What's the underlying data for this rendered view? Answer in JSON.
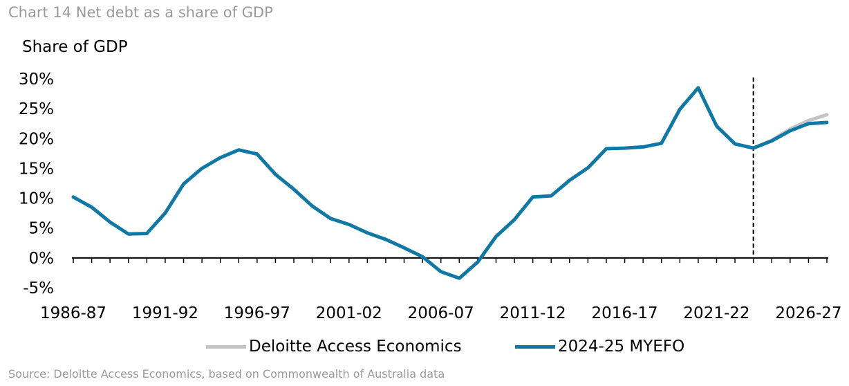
{
  "title": "Chart 14 Net debt as a share of GDP",
  "y_unit_label": "Share of GDP",
  "source": "Source: Deloitte Access Economics, based on Commonwealth of Australia data",
  "colors": {
    "dae": "#c4c4c4",
    "myefo": "#0f79a6",
    "axis": "#000000",
    "divider": "#000000"
  },
  "legend": [
    {
      "key": "dae",
      "label": "Deloitte Access Economics"
    },
    {
      "key": "myefo",
      "label": "2024-25 MYEFO"
    }
  ],
  "chart_data": {
    "type": "line",
    "title": "Chart 14 Net debt as a share of GDP",
    "ylabel": "Share of GDP",
    "xlabel": "",
    "ylim": [
      -5,
      30
    ],
    "yticks": [
      -5,
      0,
      5,
      10,
      15,
      20,
      25,
      30
    ],
    "ytick_labels": [
      "-5%",
      "0%",
      "5%",
      "10%",
      "15%",
      "20%",
      "25%",
      "30%"
    ],
    "xtick_labels": [
      "1986-87",
      "1991-92",
      "1996-97",
      "2001-02",
      "2006-07",
      "2011-12",
      "2016-17",
      "2021-22",
      "2026-27"
    ],
    "xtick_label_every": 5,
    "forecast_divider_after": "2023-24",
    "grid": false,
    "legend_position": "bottom",
    "x": [
      "1986-87",
      "1987-88",
      "1988-89",
      "1989-90",
      "1990-91",
      "1991-92",
      "1992-93",
      "1993-94",
      "1994-95",
      "1995-96",
      "1996-97",
      "1997-98",
      "1998-99",
      "1999-00",
      "2000-01",
      "2001-02",
      "2002-03",
      "2003-04",
      "2004-05",
      "2005-06",
      "2006-07",
      "2007-08",
      "2008-09",
      "2009-10",
      "2010-11",
      "2011-12",
      "2012-13",
      "2013-14",
      "2014-15",
      "2015-16",
      "2016-17",
      "2017-18",
      "2018-19",
      "2019-20",
      "2020-21",
      "2021-22",
      "2022-23",
      "2023-24",
      "2024-25",
      "2025-26",
      "2026-27",
      "2027-28"
    ],
    "series": [
      {
        "name": "Deloitte Access Economics",
        "key": "dae",
        "values": [
          null,
          null,
          null,
          null,
          null,
          null,
          null,
          null,
          null,
          null,
          null,
          null,
          null,
          null,
          null,
          null,
          null,
          null,
          null,
          null,
          null,
          null,
          null,
          null,
          null,
          null,
          null,
          null,
          null,
          null,
          null,
          null,
          null,
          null,
          null,
          null,
          null,
          18.4,
          19.7,
          21.6,
          23.0,
          24.0
        ]
      },
      {
        "name": "2024-25 MYEFO",
        "key": "myefo",
        "values": [
          10.2,
          8.5,
          6.0,
          4.0,
          4.1,
          7.5,
          12.4,
          15.0,
          16.8,
          18.1,
          17.4,
          14.0,
          11.5,
          8.7,
          6.6,
          5.6,
          4.2,
          3.1,
          1.7,
          0.2,
          -2.3,
          -3.4,
          -0.7,
          3.6,
          6.4,
          10.2,
          10.4,
          13.0,
          15.1,
          18.3,
          18.4,
          18.6,
          19.2,
          24.9,
          28.5,
          22.1,
          19.1,
          18.4,
          19.6,
          21.3,
          22.5,
          22.7
        ]
      }
    ]
  }
}
